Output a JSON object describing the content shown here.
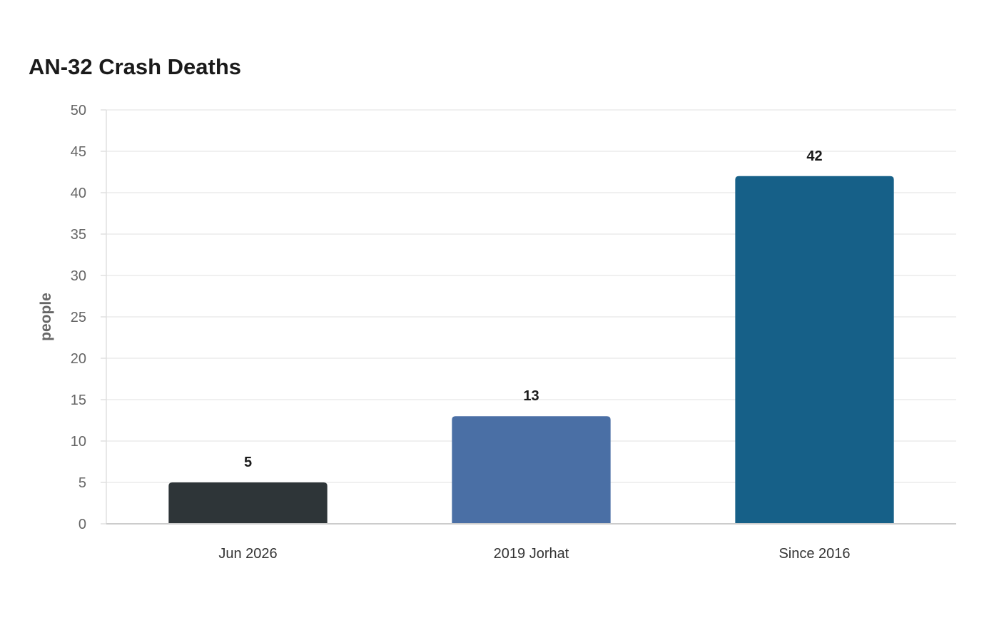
{
  "chart_data": {
    "type": "bar",
    "title": "AN-32 Crash Deaths",
    "xlabel": "",
    "ylabel": "people",
    "categories": [
      "Jun 2026",
      "2019 Jorhat",
      "Since 2016"
    ],
    "values": [
      5,
      13,
      42
    ],
    "colors": [
      "#2e3538",
      "#4a6fa5",
      "#166088"
    ],
    "ylim": [
      0,
      50
    ],
    "yticks": [
      0,
      5,
      10,
      15,
      20,
      25,
      30,
      35,
      40,
      45,
      50
    ],
    "grid": true,
    "legend": "none"
  }
}
